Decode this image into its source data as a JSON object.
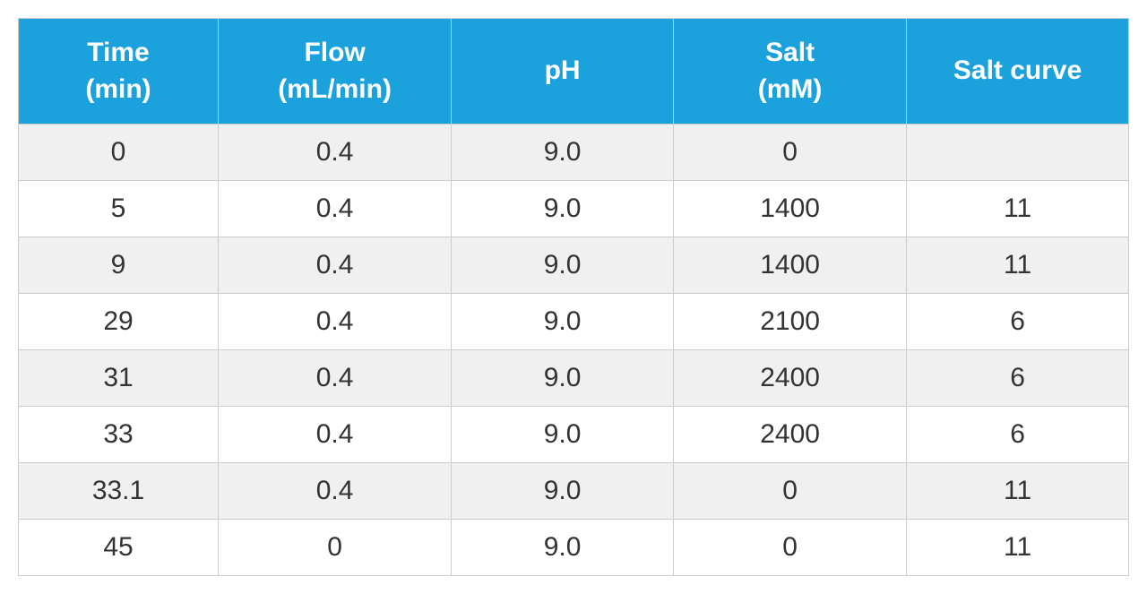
{
  "table": {
    "type": "table",
    "header_background_color": "#1ba2dc",
    "header_text_color": "#ffffff",
    "header_fontsize": 30,
    "body_fontsize": 30,
    "body_text_color": "#333333",
    "row_alt_color_odd": "#f0f0f0",
    "row_alt_color_even": "#ffffff",
    "border_color": "#cccccc",
    "columns": [
      {
        "label_line1": "Time",
        "label_line2": "(min)",
        "width_pct": 18
      },
      {
        "label_line1": "Flow",
        "label_line2": "(mL/min)",
        "width_pct": 21
      },
      {
        "label_line1": "pH",
        "label_line2": "",
        "width_pct": 20
      },
      {
        "label_line1": "Salt",
        "label_line2": "(mM)",
        "width_pct": 21
      },
      {
        "label_line1": "Salt curve",
        "label_line2": "",
        "width_pct": 20
      }
    ],
    "rows": [
      [
        "0",
        "0.4",
        "9.0",
        "0",
        ""
      ],
      [
        "5",
        "0.4",
        "9.0",
        "1400",
        "11"
      ],
      [
        "9",
        "0.4",
        "9.0",
        "1400",
        "11"
      ],
      [
        "29",
        "0.4",
        "9.0",
        "2100",
        "6"
      ],
      [
        "31",
        "0.4",
        "9.0",
        "2400",
        "6"
      ],
      [
        "33",
        "0.4",
        "9.0",
        "2400",
        "6"
      ],
      [
        "33.1",
        "0.4",
        "9.0",
        "0",
        "11"
      ],
      [
        "45",
        "0",
        "9.0",
        "0",
        "11"
      ]
    ]
  }
}
